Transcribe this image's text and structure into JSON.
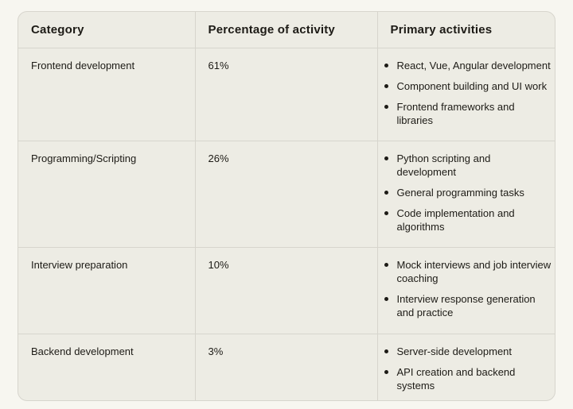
{
  "table": {
    "headers": [
      "Category",
      "Percentage of activity",
      "Primary activities"
    ],
    "rows": [
      {
        "category": "Frontend development",
        "percentage": "61%",
        "activities": [
          "React, Vue, Angular development",
          "Component building and UI work",
          "Frontend frameworks and libraries"
        ]
      },
      {
        "category": "Programming/Scripting",
        "percentage": "26%",
        "activities": [
          "Python scripting and development",
          "General programming tasks",
          "Code implementation and algorithms"
        ]
      },
      {
        "category": "Interview preparation",
        "percentage": "10%",
        "activities": [
          "Mock interviews and job interview coaching",
          "Interview response generation and practice"
        ]
      },
      {
        "category": "Backend development",
        "percentage": "3%",
        "activities": [
          "Server-side development",
          "API creation and backend systems"
        ]
      }
    ]
  },
  "chart_data": {
    "type": "table",
    "title": "",
    "columns": [
      "Category",
      "Percentage of activity",
      "Primary activities"
    ],
    "categories": [
      "Frontend development",
      "Programming/Scripting",
      "Interview preparation",
      "Backend development"
    ],
    "values": [
      61,
      26,
      10,
      3
    ],
    "value_unit": "%",
    "primary_activities": [
      [
        "React, Vue, Angular development",
        "Component building and UI work",
        "Frontend frameworks and libraries"
      ],
      [
        "Python scripting and development",
        "General programming tasks",
        "Code implementation and algorithms"
      ],
      [
        "Mock interviews and job interview coaching",
        "Interview response generation and practice"
      ],
      [
        "Server-side development",
        "API creation and backend systems"
      ]
    ]
  },
  "colors": {
    "page_background": "#f7f6f0",
    "table_background": "#edece4",
    "border": "#d7d5cd",
    "text": "#1d1b16"
  }
}
